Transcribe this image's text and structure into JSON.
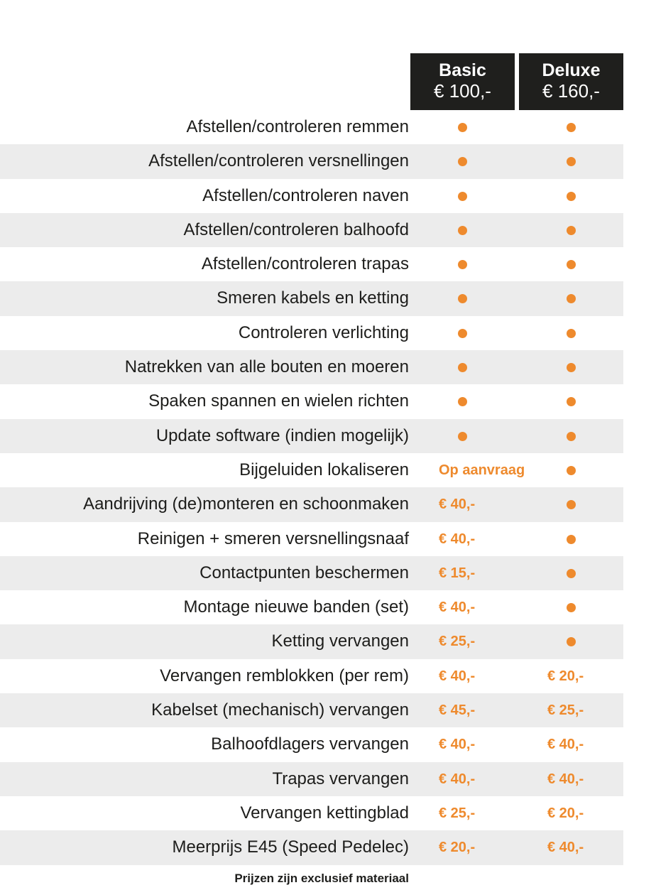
{
  "plans": {
    "basic": {
      "name": "Basic",
      "price": "€ 100,-"
    },
    "deluxe": {
      "name": "Deluxe",
      "price": "€ 160,-"
    }
  },
  "colors": {
    "accent": "#ee8a2d",
    "header_bg": "#1f1f1d",
    "row_shade": "#ececec"
  },
  "rows": [
    {
      "label": "Afstellen/controleren remmen",
      "basic": "dot",
      "deluxe": "dot"
    },
    {
      "label": "Afstellen/controleren versnellingen",
      "basic": "dot",
      "deluxe": "dot"
    },
    {
      "label": "Afstellen/controleren naven",
      "basic": "dot",
      "deluxe": "dot"
    },
    {
      "label": "Afstellen/controleren balhoofd",
      "basic": "dot",
      "deluxe": "dot"
    },
    {
      "label": "Afstellen/controleren trapas",
      "basic": "dot",
      "deluxe": "dot"
    },
    {
      "label": "Smeren kabels en ketting",
      "basic": "dot",
      "deluxe": "dot"
    },
    {
      "label": "Controleren verlichting",
      "basic": "dot",
      "deluxe": "dot"
    },
    {
      "label": "Natrekken van alle bouten en moeren",
      "basic": "dot",
      "deluxe": "dot"
    },
    {
      "label": "Spaken spannen en wielen richten",
      "basic": "dot",
      "deluxe": "dot"
    },
    {
      "label": "Update software (indien mogelijk)",
      "basic": "dot",
      "deluxe": "dot"
    },
    {
      "label": "Bijgeluiden lokaliseren",
      "basic": "Op aanvraag",
      "deluxe": "dot"
    },
    {
      "label": "Aandrijving (de)monteren en schoonmaken",
      "basic": "€ 40,-",
      "deluxe": "dot"
    },
    {
      "label": "Reinigen + smeren versnellingsnaaf",
      "basic": "€ 40,-",
      "deluxe": "dot"
    },
    {
      "label": "Contactpunten beschermen",
      "basic": "€ 15,-",
      "deluxe": "dot"
    },
    {
      "label": "Montage nieuwe banden (set)",
      "basic": "€ 40,-",
      "deluxe": "dot"
    },
    {
      "label": "Ketting vervangen",
      "basic": "€ 25,-",
      "deluxe": "dot"
    },
    {
      "label": "Vervangen remblokken (per rem)",
      "basic": "€ 40,-",
      "deluxe": "€ 20,-"
    },
    {
      "label": "Kabelset (mechanisch) vervangen",
      "basic": "€ 45,-",
      "deluxe": "€ 25,-"
    },
    {
      "label": "Balhoofdlagers vervangen",
      "basic": "€ 40,-",
      "deluxe": "€ 40,-"
    },
    {
      "label": "Trapas vervangen",
      "basic": "€ 40,-",
      "deluxe": "€ 40,-"
    },
    {
      "label": "Vervangen kettingblad",
      "basic": "€ 25,-",
      "deluxe": "€ 20,-"
    },
    {
      "label": "Meerprijs E45 (Speed Pedelec)",
      "basic": "€ 20,-",
      "deluxe": "€ 40,-"
    }
  ],
  "footnote": "Prijzen zijn exclusief materiaal"
}
